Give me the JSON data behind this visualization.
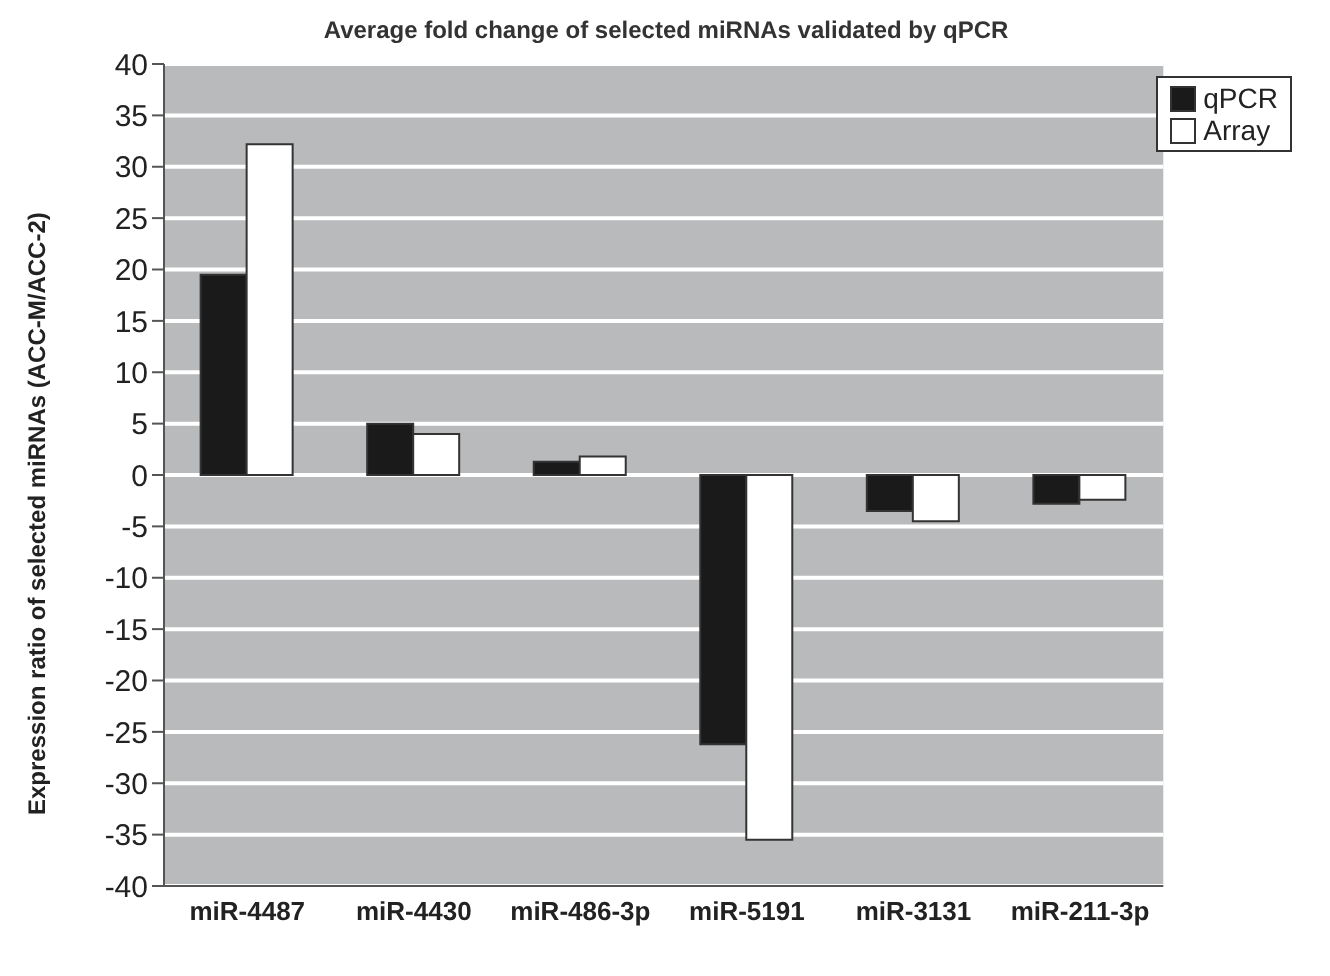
{
  "chart_data": {
    "type": "bar",
    "title": "Average fold change of selected miRNAs validated by qPCR",
    "ylabel": "Expression ratio of selected miRNAs (ACC-M/ACC-2)",
    "categories": [
      "miR-4487",
      "miR-4430",
      "miR-486-3p",
      "miR-5191",
      "miR-3131",
      "miR-211-3p"
    ],
    "series": [
      {
        "name": "qPCR",
        "color": "#1a1a1a",
        "values": [
          19.5,
          5,
          1.3,
          -26.2,
          -3.5,
          -2.8
        ]
      },
      {
        "name": "Array",
        "color": "#ffffff",
        "values": [
          32.2,
          4,
          1.8,
          -35.5,
          -4.5,
          -2.4
        ]
      }
    ],
    "ylim": [
      -40,
      40
    ],
    "yticks": [
      -40,
      -35,
      -30,
      -25,
      -20,
      -15,
      -10,
      -5,
      0,
      5,
      10,
      15,
      20,
      25,
      30,
      35,
      40
    ],
    "grid": "y",
    "legend": "top right"
  }
}
